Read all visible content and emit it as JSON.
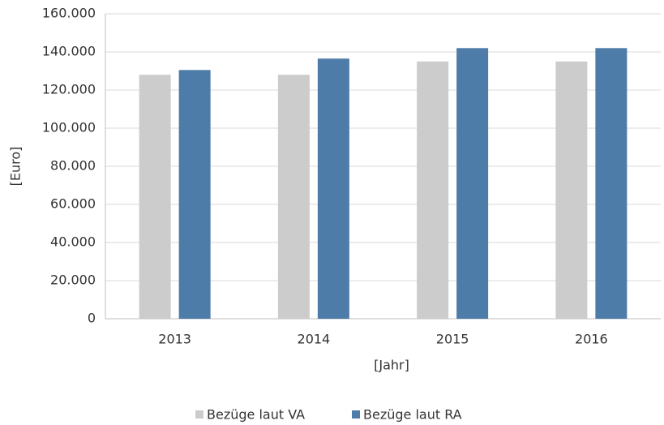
{
  "chart_data": {
    "type": "bar",
    "categories": [
      "2013",
      "2014",
      "2015",
      "2016"
    ],
    "series": [
      {
        "name": "Bezüge laut VA",
        "color": "#cccccc",
        "values": [
          128000,
          128000,
          135000,
          135000
        ]
      },
      {
        "name": "Bezüge laut RA",
        "color": "#4e7ca9",
        "values": [
          130500,
          136500,
          142000,
          142000
        ]
      }
    ],
    "ylabel": "[Euro]",
    "xlabel": "[Jahr]",
    "ylim": [
      0,
      160000
    ],
    "yticks": [
      0,
      {
        "value": 20000,
        "label": "20.000"
      },
      {
        "value": 40000,
        "label": "40.000"
      },
      {
        "value": 60000,
        "label": "60.000"
      },
      {
        "value": 80000,
        "label": "80.000"
      },
      {
        "value": 100000,
        "label": "100.000"
      },
      {
        "value": 120000,
        "label": "120.000"
      },
      {
        "value": 140000,
        "label": "140.000"
      },
      {
        "value": 160000,
        "label": "160.000"
      }
    ],
    "grid": true,
    "legend": "bottom"
  }
}
